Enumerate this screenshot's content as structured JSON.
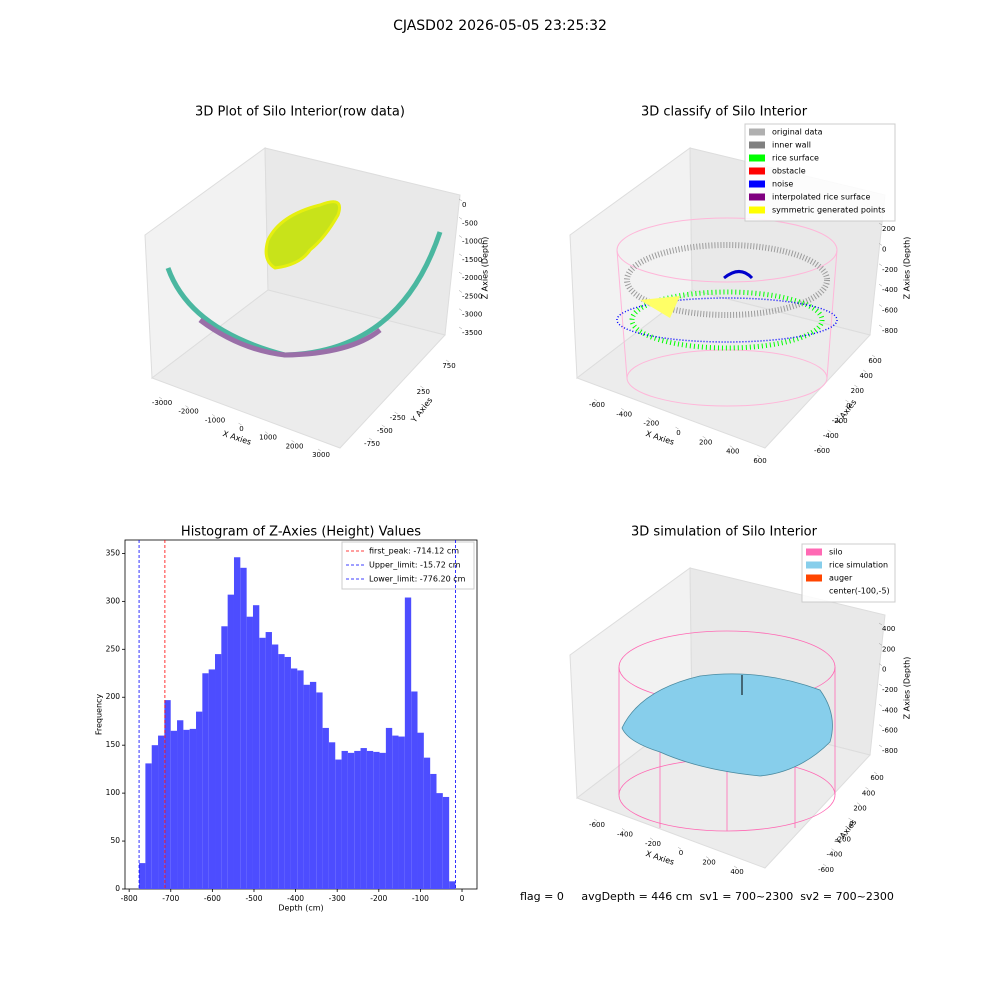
{
  "title": "CJASD02 2026-05-05 23:25:32",
  "chart_data": [
    {
      "type": "scatter3d",
      "title": "3D Plot of Silo Interior(row data)",
      "xlabel": "X Axies",
      "ylabel": "Y Axies",
      "zlabel": "Z Axies (Depth)",
      "xticks": [
        -3000,
        -2000,
        -1000,
        0,
        1000,
        2000,
        3000
      ],
      "yticks": [
        -750,
        -500,
        -250,
        250,
        750
      ],
      "zticks": [
        -3500,
        -3000,
        -2500,
        -2000,
        -1500,
        -1000,
        -500,
        0
      ]
    },
    {
      "type": "scatter3d",
      "title": "3D classify of Silo Interior",
      "xlabel": "X Axies",
      "ylabel": "Y Axies",
      "zlabel": "Z Axies (Depth)",
      "xticks": [
        -600,
        -400,
        -200,
        0,
        200,
        400,
        600
      ],
      "yticks": [
        -600,
        -400,
        -200,
        0,
        200,
        400,
        600
      ],
      "zticks": [
        -800,
        -600,
        -400,
        -200,
        0,
        200
      ],
      "legend_items": [
        {
          "name": "original data",
          "color": "#b0b0b0"
        },
        {
          "name": "inner wall",
          "color": "#808080"
        },
        {
          "name": "rice surface",
          "color": "#00ff00"
        },
        {
          "name": "obstacle",
          "color": "#ff0000"
        },
        {
          "name": "noise",
          "color": "#0000ff"
        },
        {
          "name": "interpolated rice surface",
          "color": "#800080"
        },
        {
          "name": "symmetric generated points",
          "color": "#ffff00"
        }
      ]
    },
    {
      "type": "histogram",
      "title": "Histogram of Z-Axies (Height) Values",
      "xlabel": "Depth (cm)",
      "ylabel": "Frequency",
      "color": "#4d4dff",
      "bins": [
        -776.2,
        -760.99,
        -745.78,
        -730.57,
        -715.36,
        -700.15,
        -684.94,
        -669.73,
        -654.52,
        -639.31,
        -624.1,
        -608.89,
        -593.68,
        -578.48,
        -563.27,
        -548.06,
        -532.85,
        -517.64,
        -502.43,
        -487.22,
        -472.01,
        -456.8,
        -441.59,
        -426.38,
        -411.17,
        -395.96,
        -380.75,
        -365.54,
        -350.33,
        -335.12,
        -319.91,
        -304.7,
        -289.49,
        -274.28,
        -259.07,
        -243.86,
        -228.65,
        -213.44,
        -198.23,
        -183.02,
        -167.82,
        -152.61,
        -137.4,
        -122.19,
        -106.98,
        -91.77,
        -76.56,
        -61.35,
        -46.14,
        -30.93,
        -15.72
      ],
      "values": [
        27,
        131,
        150,
        160,
        197,
        165,
        176,
        166,
        167,
        185,
        225,
        229,
        245,
        274,
        307,
        346,
        335,
        284,
        296,
        262,
        268,
        255,
        245,
        242,
        230,
        228,
        213,
        216,
        205,
        168,
        153,
        135,
        144,
        142,
        144,
        147,
        144,
        143,
        142,
        168,
        160,
        159,
        304,
        206,
        163,
        137,
        120,
        100,
        96,
        8
      ],
      "xlim": [
        -810,
        36
      ],
      "ylim": [
        0,
        364
      ],
      "xticks": [
        -800,
        -700,
        -600,
        -500,
        -400,
        -300,
        -200,
        -100,
        0
      ],
      "yticks": [
        0,
        50,
        100,
        150,
        200,
        250,
        300,
        350
      ],
      "vlines": [
        {
          "name": "first_peak: -714.12 cm",
          "value": -714.12,
          "color": "#ff0000"
        },
        {
          "name": "Upper_limit: -15.72 cm",
          "value": -15.72,
          "color": "#0000ff"
        },
        {
          "name": "Lower_limit: -776.20 cm",
          "value": -776.2,
          "color": "#0000ff"
        }
      ]
    },
    {
      "type": "surface3d",
      "title": "3D simulation of Silo Interior",
      "xlabel": "X Axies",
      "ylabel": "Y Axies",
      "zlabel": "Z Axies (Depth)",
      "xticks": [
        -600,
        -400,
        -200,
        0,
        200,
        400
      ],
      "yticks": [
        -600,
        -400,
        -200,
        0,
        200,
        400,
        600
      ],
      "zticks": [
        -800,
        -600,
        -400,
        -200,
        0,
        200,
        400
      ],
      "legend_items": [
        {
          "name": "silo",
          "color": "#ff69b4"
        },
        {
          "name": "rice simulation",
          "color": "#87ceeb"
        },
        {
          "name": "auger",
          "color": "#ff4500"
        },
        {
          "name": "center(-100,-5)",
          "color": "#ffffff"
        }
      ]
    }
  ],
  "footer": "flag = 0     avgDepth = 446 cm  sv1 = 700~2300  sv2 = 700~2300"
}
